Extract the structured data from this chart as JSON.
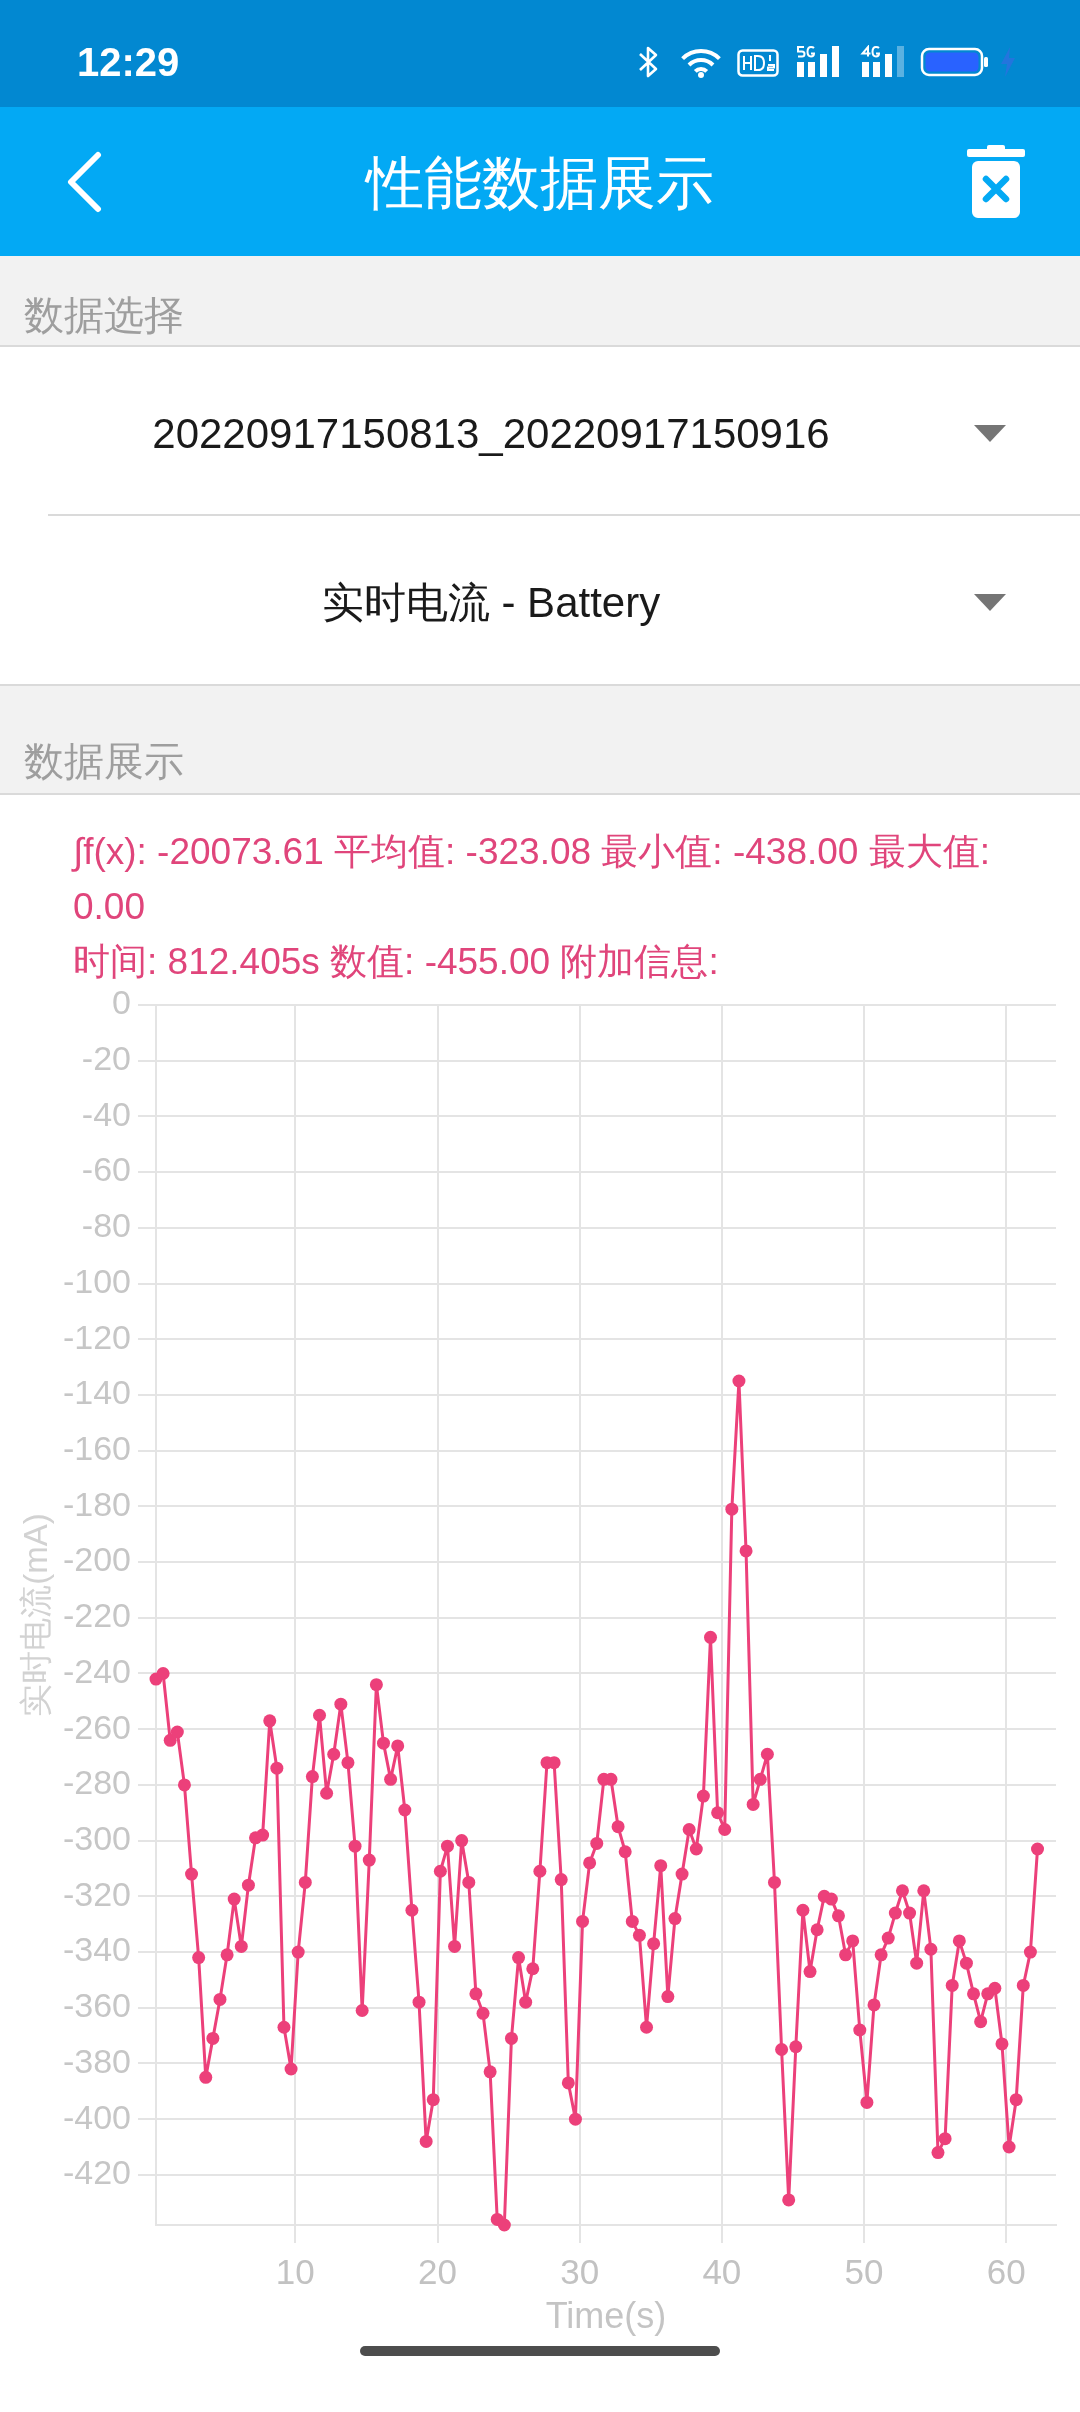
{
  "chart_data": {
    "type": "line",
    "title": "性能数据展示",
    "xlabel": "Time(s)",
    "ylabel": "实时电流(mA)",
    "annotations": [
      "12:29",
      "数据选择",
      "20220917150813_20220917150916",
      "实时电流 - Battery",
      "数据展示",
      "∫f(x): -20073.61 平均值: -323.08 最小值: -438.00 最大值: 0.00",
      "时间: 812.405s 数值: -455.00 附加信息:"
    ],
    "x": [
      0.2,
      0.7,
      1.2,
      1.7,
      2.2,
      2.7,
      3.2,
      3.7,
      4.2,
      4.7,
      5.2,
      5.7,
      6.2,
      6.7,
      7.2,
      7.7,
      8.2,
      8.7,
      9.2,
      9.7,
      10.2,
      10.7,
      11.2,
      11.7,
      12.2,
      12.7,
      13.2,
      13.7,
      14.2,
      14.7,
      15.2,
      15.7,
      16.2,
      16.7,
      17.2,
      17.7,
      18.2,
      18.7,
      19.2,
      19.7,
      20.2,
      20.7,
      21.2,
      21.7,
      22.2,
      22.7,
      23.2,
      23.7,
      24.2,
      24.7,
      25.2,
      25.7,
      26.2,
      26.7,
      27.2,
      27.7,
      28.2,
      28.7,
      29.2,
      29.7,
      30.2,
      30.7,
      31.2,
      31.7,
      32.2,
      32.7,
      33.2,
      33.7,
      34.2,
      34.7,
      35.2,
      35.7,
      36.2,
      36.7,
      37.2,
      37.7,
      38.2,
      38.7,
      39.2,
      39.7,
      40.2,
      40.7,
      41.2,
      41.7,
      42.2,
      42.7,
      43.2,
      43.7,
      44.2,
      44.7,
      45.2,
      45.7,
      46.2,
      46.7,
      47.2,
      47.7,
      48.2,
      48.7,
      49.2,
      49.7,
      50.2,
      50.7,
      51.2,
      51.7,
      52.2,
      52.7,
      53.2,
      53.7,
      54.2,
      54.7,
      55.2,
      55.7,
      56.2,
      56.7,
      57.2,
      57.7,
      58.2,
      58.7,
      59.2,
      59.7,
      60.2,
      60.7,
      61.2,
      61.7,
      62.2
    ],
    "series": [
      {
        "color": "#ec407a",
        "values": [
          -242,
          -240,
          -264,
          -261,
          -280,
          -312,
          -342,
          -385,
          -371,
          -357,
          -341,
          -321,
          -338,
          -316,
          -299,
          -298,
          -257,
          -274,
          -367,
          -382,
          -340,
          -315,
          -277,
          -255,
          -283,
          -269,
          -251,
          -272,
          -302,
          -361,
          -307,
          -244,
          -265,
          -278,
          -266,
          -289,
          -325,
          -358,
          -408,
          -393,
          -311,
          -302,
          -338,
          -300,
          -315,
          -355,
          -362,
          -383,
          -436,
          -438,
          -371,
          -342,
          -358,
          -346,
          -311,
          -272,
          -272,
          -314,
          -387,
          -400,
          -329,
          -308,
          -301,
          -278,
          -278,
          -295,
          -304,
          -329,
          -334,
          -367,
          -337,
          -309,
          -356,
          -328,
          -312,
          -296,
          -303,
          -284,
          -227,
          -290,
          -296,
          -181,
          -135,
          -196,
          -287,
          -278,
          -269,
          -315,
          -375,
          -429,
          -374,
          -325,
          -347,
          -332,
          -320,
          -321,
          -327,
          -341,
          -336,
          -368,
          -394,
          -359,
          -341,
          -335,
          -326,
          -318,
          -326,
          -344,
          -318,
          -339,
          -412,
          -407,
          -352,
          -336,
          -344,
          -355,
          -365,
          -355,
          -353,
          -373,
          -410,
          -393,
          -352,
          -340,
          -303
        ]
      }
    ],
    "xlim": [
      0.2,
      63.5
    ],
    "xticks": [
      10,
      20,
      30,
      40,
      50,
      60
    ],
    "ylim": [
      -438,
      0
    ],
    "yticks": [
      0,
      -20,
      -40,
      -60,
      -80,
      -100,
      -120,
      -140,
      -160,
      -180,
      -200,
      -220,
      -240,
      -260,
      -280,
      -300,
      -320,
      -340,
      -360,
      -380,
      -400,
      -420
    ],
    "grid": true,
    "marker": "circle"
  }
}
